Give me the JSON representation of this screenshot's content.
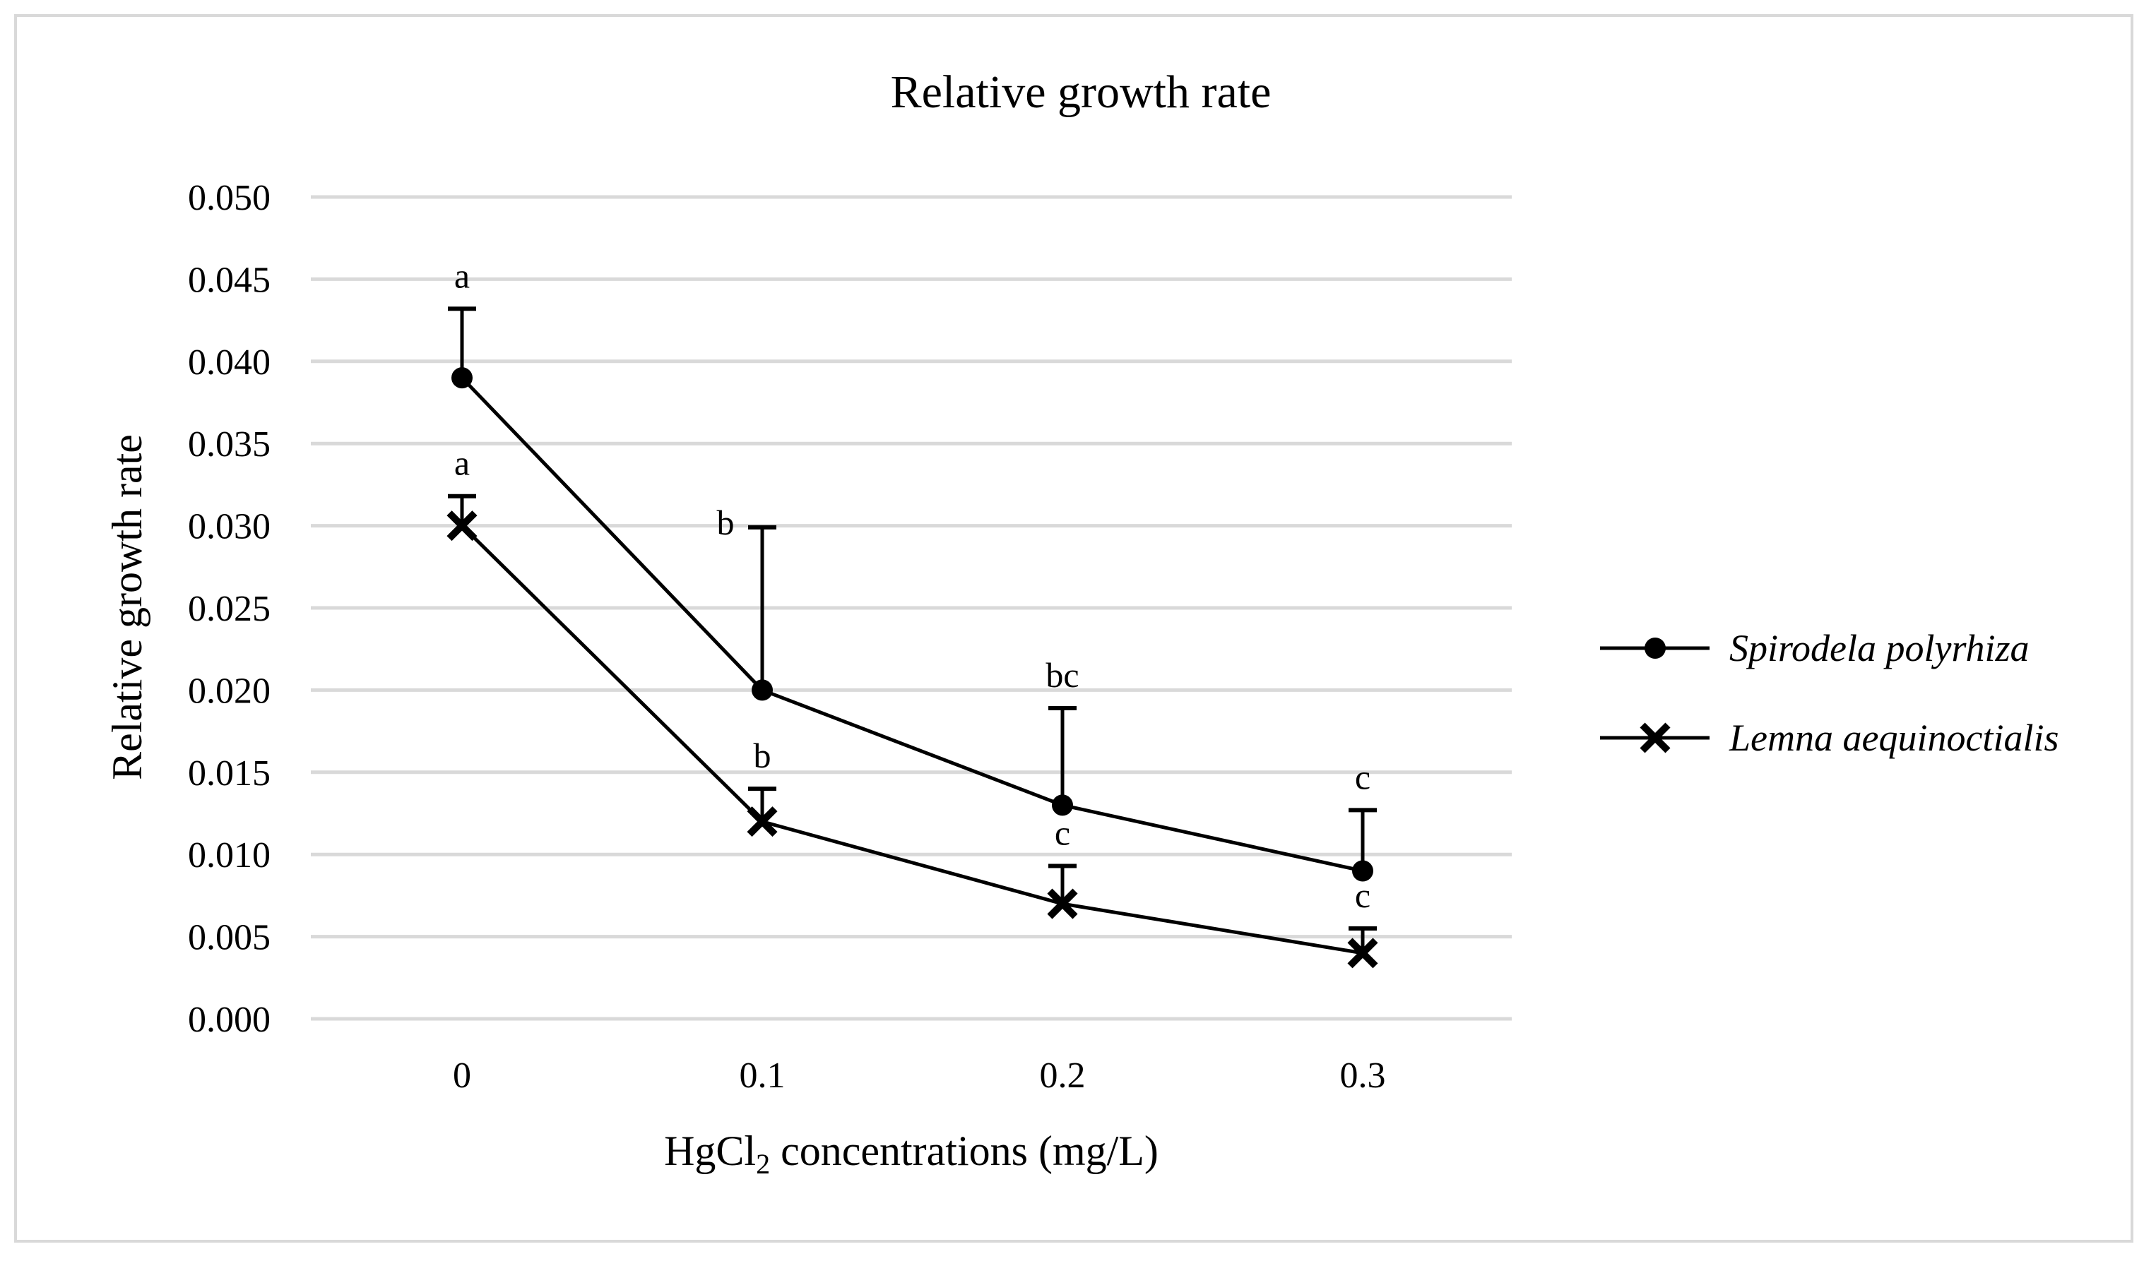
{
  "chart_data": {
    "type": "line",
    "title": "Relative growth rate",
    "xlabel_main": "HgCl",
    "xlabel_sub": "2",
    "xlabel_rest": " concentrations (mg/L)",
    "ylabel": "Relative growth rate",
    "ylim": [
      0,
      0.05
    ],
    "ytick_step": 0.005,
    "ytick_labels": [
      "0.000",
      "0.005",
      "0.010",
      "0.015",
      "0.020",
      "0.025",
      "0.030",
      "0.035",
      "0.040",
      "0.045",
      "0.050"
    ],
    "categories": [
      "0",
      "0.1",
      "0.2",
      "0.3"
    ],
    "grid": true,
    "legend_position": "right",
    "series": [
      {
        "name": "Spirodela polyrhiza",
        "marker": "circle",
        "values": [
          0.039,
          0.02,
          0.013,
          0.009
        ],
        "error_upper": [
          0.0042,
          0.0099,
          0.0059,
          0.0037
        ],
        "letters": [
          "a",
          "b",
          "bc",
          "c"
        ]
      },
      {
        "name": "Lemna aequinoctialis",
        "marker": "cross",
        "values": [
          0.03,
          0.012,
          0.007,
          0.004
        ],
        "error_upper": [
          0.0018,
          0.002,
          0.0023,
          0.0015
        ],
        "letters": [
          "a",
          "b",
          "c",
          "c"
        ]
      }
    ],
    "color": "#000000",
    "grid_color": "#d9d9d9"
  }
}
